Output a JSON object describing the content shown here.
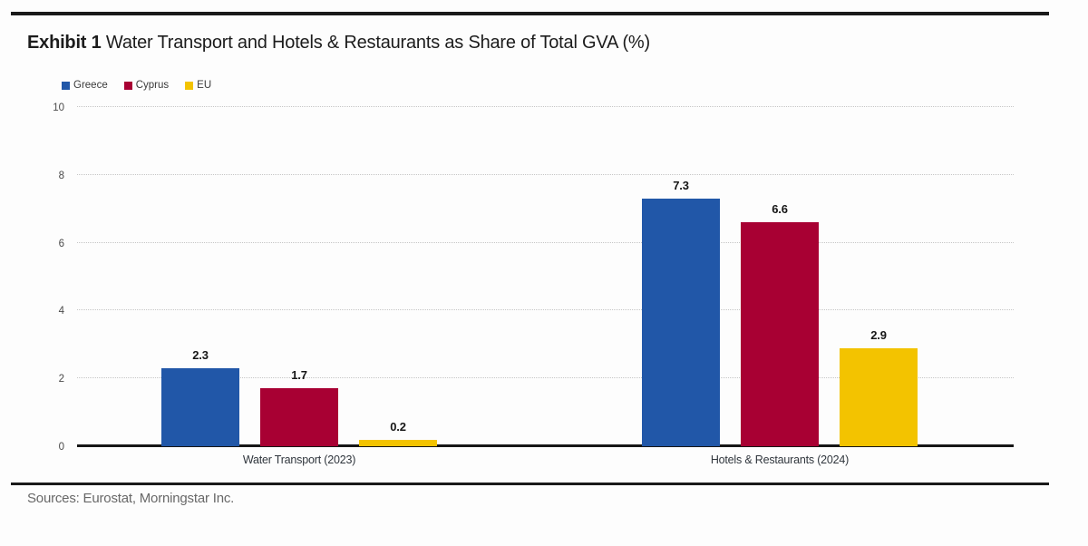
{
  "header": {
    "exhibit_label": "Exhibit 1",
    "title": " Water Transport and Hotels & Restaurants as Share of Total GVA (%)"
  },
  "footer": {
    "sources": "Sources: Eurostat, Morningstar Inc."
  },
  "colors": {
    "greece_blue": "#2157A8",
    "cyprus_red": "#A80033",
    "eu_yellow": "#F3C300",
    "gridline": "#C6C6C6",
    "axis_line": "#161616",
    "text_dark": "#1A1A1A",
    "source_gray": "#686868"
  },
  "chart_data": {
    "type": "bar",
    "title": "Water Transport and Hotels & Restaurants as Share of Total GVA (%)",
    "categories": [
      "Water Transport (2023)",
      "Hotels & Restaurants (2024)"
    ],
    "series": [
      {
        "name": "Greece",
        "color": "#2157A8",
        "values": [
          2.3,
          7.3
        ]
      },
      {
        "name": "Cyprus",
        "color": "#A80033",
        "values": [
          1.7,
          6.6
        ]
      },
      {
        "name": "EU",
        "color": "#F3C300",
        "values": [
          0.2,
          2.9
        ]
      }
    ],
    "ylim": [
      0,
      10
    ],
    "yticks": [
      0,
      2,
      4,
      6,
      8,
      10
    ],
    "grid": "dotted-horizontal",
    "legend_position": "top-left",
    "value_labels": true,
    "value_label_format": "0.0"
  }
}
